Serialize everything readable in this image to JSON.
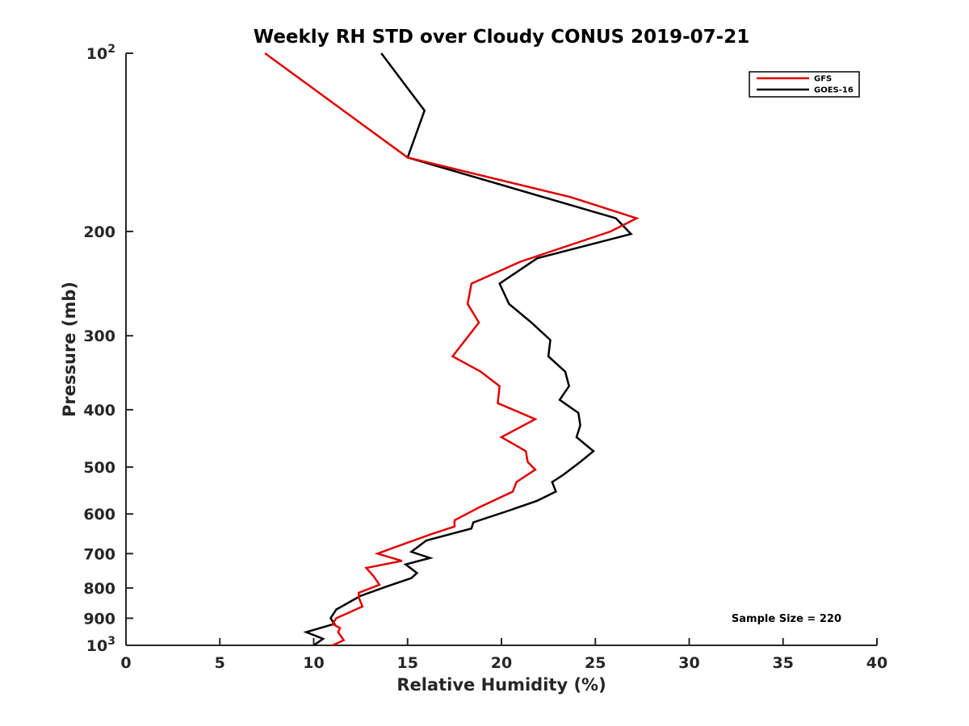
{
  "chart_data": {
    "type": "line",
    "title": "Weekly RH STD over Cloudy CONUS 2019-07-21",
    "xlabel": "Relative Humidity (%)",
    "ylabel": "Pressure (mb)",
    "xlim": [
      0,
      40
    ],
    "ylim": [
      100,
      1000
    ],
    "y_scale": "log",
    "y_reversed": true,
    "grid": false,
    "legend_position": "top-right",
    "x_ticks": [
      0,
      5,
      10,
      15,
      20,
      25,
      30,
      35,
      40
    ],
    "x_tick_labels": [
      "0",
      "5",
      "10",
      "15",
      "20",
      "25",
      "30",
      "35",
      "40"
    ],
    "y_ticks": [
      {
        "value": 100,
        "base": "10",
        "exp": "2"
      },
      {
        "value": 200,
        "label": "200"
      },
      {
        "value": 300,
        "label": "300"
      },
      {
        "value": 400,
        "label": "400"
      },
      {
        "value": 500,
        "label": "500"
      },
      {
        "value": 600,
        "label": "600"
      },
      {
        "value": 700,
        "label": "700"
      },
      {
        "value": 800,
        "label": "800"
      },
      {
        "value": 900,
        "label": "900"
      },
      {
        "value": 1000,
        "base": "10",
        "exp": "3"
      }
    ],
    "series": [
      {
        "name": "GFS",
        "color": "#e00000",
        "points": [
          [
            7.4,
            100
          ],
          [
            15.0,
            150
          ],
          [
            23.7,
            175
          ],
          [
            27.2,
            190
          ],
          [
            25.8,
            200
          ],
          [
            21.0,
            225
          ],
          [
            18.4,
            245
          ],
          [
            18.2,
            265
          ],
          [
            18.8,
            285
          ],
          [
            17.4,
            325
          ],
          [
            18.9,
            345
          ],
          [
            19.9,
            365
          ],
          [
            19.8,
            390
          ],
          [
            21.8,
            415
          ],
          [
            20.0,
            445
          ],
          [
            21.3,
            470
          ],
          [
            21.4,
            490
          ],
          [
            21.8,
            505
          ],
          [
            20.8,
            530
          ],
          [
            20.6,
            550
          ],
          [
            18.8,
            585
          ],
          [
            17.5,
            615
          ],
          [
            17.5,
            630
          ],
          [
            16.2,
            650
          ],
          [
            14.2,
            685
          ],
          [
            13.4,
            700
          ],
          [
            14.7,
            720
          ],
          [
            12.8,
            740
          ],
          [
            13.2,
            765
          ],
          [
            13.5,
            790
          ],
          [
            12.4,
            815
          ],
          [
            12.4,
            830
          ],
          [
            12.6,
            860
          ],
          [
            11.2,
            900
          ],
          [
            11.0,
            920
          ],
          [
            11.4,
            935
          ],
          [
            11.3,
            950
          ],
          [
            11.6,
            980
          ],
          [
            11.0,
            1000
          ]
        ]
      },
      {
        "name": "GOES-16",
        "color": "#000000",
        "points": [
          [
            13.6,
            100
          ],
          [
            15.9,
            125
          ],
          [
            15.0,
            150
          ],
          [
            26.1,
            190
          ],
          [
            26.9,
            202
          ],
          [
            21.9,
            222
          ],
          [
            19.9,
            245
          ],
          [
            20.4,
            265
          ],
          [
            21.6,
            285
          ],
          [
            22.6,
            305
          ],
          [
            22.5,
            325
          ],
          [
            23.4,
            345
          ],
          [
            23.6,
            365
          ],
          [
            23.1,
            385
          ],
          [
            24.1,
            405
          ],
          [
            24.2,
            425
          ],
          [
            24.0,
            445
          ],
          [
            24.9,
            470
          ],
          [
            24.2,
            490
          ],
          [
            23.3,
            515
          ],
          [
            22.7,
            530
          ],
          [
            22.9,
            550
          ],
          [
            21.9,
            570
          ],
          [
            20.2,
            595
          ],
          [
            18.5,
            620
          ],
          [
            18.4,
            635
          ],
          [
            16.0,
            665
          ],
          [
            15.2,
            695
          ],
          [
            16.2,
            712
          ],
          [
            14.9,
            730
          ],
          [
            15.5,
            755
          ],
          [
            15.2,
            770
          ],
          [
            13.9,
            795
          ],
          [
            12.5,
            825
          ],
          [
            11.2,
            870
          ],
          [
            10.9,
            900
          ],
          [
            11.1,
            920
          ],
          [
            9.6,
            950
          ],
          [
            10.5,
            975
          ],
          [
            10.0,
            1000
          ]
        ]
      }
    ],
    "annotations": [
      "Sample Size = 220"
    ]
  }
}
